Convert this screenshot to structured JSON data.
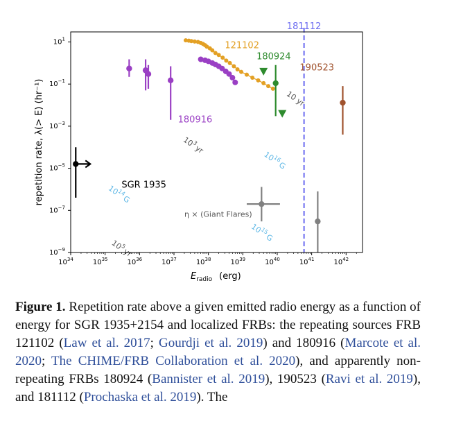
{
  "caption": {
    "label": "Figure 1.",
    "t1": " Repetition rate above a given emitted radio energy as a function of energy for SGR 1935+2154 and localized FRBs: the repeating sources FRB 121102 (",
    "c1": "Law et al. 2017",
    "t2": "; ",
    "c2": "Gourdji et al. 2019",
    "t3": ") and 180916 (",
    "c3": "Marcote et al. 2020",
    "t4": "; ",
    "c4": "The CHIME/FRB Collaboration et al. 2020",
    "t5": "), and apparently non-repeating FRBs 180924 (",
    "c5": "Bannister et al. 2019",
    "t6": "), 190523 (",
    "c6": "Ravi et al. 2019",
    "t7": "), and 181112 (",
    "c7": "Prochaska et al. 2019",
    "t8": "). The"
  },
  "chart_data": {
    "type": "scatter",
    "xscale": "log",
    "yscale": "log",
    "xlim": [
      1e+34,
      3e+42
    ],
    "ylim": [
      1e-09,
      30
    ],
    "xlabel_main": "E",
    "xlabel_sub": "radio",
    "xlabel_unit": "(erg)",
    "ylabel": "repetition rate, λ(> E)  (hr⁻¹)",
    "xticks": [
      {
        "base": "10",
        "exp": "34",
        "value": 1e+34
      },
      {
        "base": "10",
        "exp": "35",
        "value": 1e+35
      },
      {
        "base": "10",
        "exp": "36",
        "value": 1e+36
      },
      {
        "base": "10",
        "exp": "37",
        "value": 1e+37
      },
      {
        "base": "10",
        "exp": "38",
        "value": 1e+38
      },
      {
        "base": "10",
        "exp": "39",
        "value": 1e+39
      },
      {
        "base": "10",
        "exp": "40",
        "value": 1e+40
      },
      {
        "base": "10",
        "exp": "41",
        "value": 1e+41
      },
      {
        "base": "10",
        "exp": "42",
        "value": 1e+42
      }
    ],
    "yticks": [
      {
        "base": "10",
        "exp": "1",
        "value": 10
      },
      {
        "base": "10",
        "exp": "−1",
        "value": 0.1
      },
      {
        "base": "10",
        "exp": "−3",
        "value": 0.001
      },
      {
        "base": "10",
        "exp": "−5",
        "value": 1e-05
      },
      {
        "base": "10",
        "exp": "−7",
        "value": 1e-07
      },
      {
        "base": "10",
        "exp": "−9",
        "value": 1e-09
      }
    ],
    "bands": [
      {
        "name": "10 yr",
        "intercept_logy": 44.2
      },
      {
        "name": "10^3 yr",
        "intercept_logy": 40.2
      },
      {
        "name": "10^5 yr",
        "intercept_logy": 36.2
      }
    ],
    "band_half_width_logy": 0.9,
    "band_slope": -1.333,
    "band_color": "#ececec",
    "dotted_lines": [
      {
        "label": "10^16 G",
        "intercept_logy": 43.2
      },
      {
        "label": "10^15 G",
        "intercept_logy": 41.2
      },
      {
        "label": "10^14 G",
        "intercept_logy": 39.2
      }
    ],
    "dotted_color": "#5fb8e6",
    "text_labels": [
      {
        "text": "10",
        "sup": "3",
        "tail": "yr",
        "color": "#555555",
        "x": 1.8e+37,
        "y": 0.0002,
        "rotate": 35
      },
      {
        "text": "10",
        "sup": "5",
        "tail": "yr",
        "color": "#555555",
        "x": 1.5e+35,
        "y": 2.5e-09,
        "rotate": 35
      },
      {
        "text": "10 yr",
        "sup": "",
        "tail": "",
        "color": "#555555",
        "x": 1.8e+40,
        "y": 0.03,
        "rotate": 35
      },
      {
        "text": "10",
        "sup": "16",
        "tail": "G",
        "color": "#5fb8e6",
        "x": 4e+39,
        "y": 4e-05,
        "rotate": 35
      },
      {
        "text": "10",
        "sup": "15",
        "tail": "G",
        "color": "#5fb8e6",
        "x": 1.7e+39,
        "y": 1.5e-08,
        "rotate": 35
      },
      {
        "text": "10",
        "sup": "14",
        "tail": "G",
        "color": "#5fb8e6",
        "x": 1.2e+35,
        "y": 1e-06,
        "rotate": 35
      },
      {
        "text": "η × (Giant Flares)",
        "sup": "",
        "tail": "",
        "color": "#555555",
        "x": 2e+37,
        "y": 5e-08,
        "rotate": 0
      }
    ],
    "series": [
      {
        "name": "121102",
        "color": "#e3a024",
        "marker": "circle",
        "x": [
          2.2e+37,
          2.7e+37,
          3.2e+37,
          4e+37,
          5e+37,
          6e+37,
          7e+37,
          8e+37,
          9e+37,
          1.1e+38,
          1.3e+38,
          1.6e+38,
          2e+38,
          2.6e+38,
          3.3e+38,
          4.2e+38,
          5.5e+38,
          7e+38,
          9e+38,
          1.3e+39,
          1.9e+39,
          2.8e+39,
          4e+39,
          5.5e+39,
          7.5e+39
        ],
        "y": [
          12,
          11.5,
          11,
          10.5,
          10,
          9,
          8,
          7,
          6,
          5,
          4,
          3,
          2.4,
          1.8,
          1.3,
          1.0,
          0.7,
          0.5,
          0.38,
          0.28,
          0.2,
          0.15,
          0.11,
          0.08,
          0.06
        ]
      },
      {
        "name": "180916",
        "color": "#9a3fc4",
        "marker": "circle",
        "x": [
          6e+37,
          8e+37,
          1e+38,
          1.3e+38,
          1.6e+38,
          2e+38,
          2.5e+38,
          3.2e+38,
          4e+38,
          5e+38,
          6e+38
        ],
        "y": [
          1.5,
          1.35,
          1.2,
          1.0,
          0.85,
          0.7,
          0.55,
          0.4,
          0.3,
          0.2,
          0.12
        ]
      }
    ],
    "errorbar_points": [
      {
        "color": "#9a3fc4",
        "x": 5e+35,
        "y": 0.55,
        "ylo": 0.22,
        "yhi": 1.5,
        "marker": "circle"
      },
      {
        "color": "#9a3fc4",
        "x": 1.5e+36,
        "y": 0.45,
        "ylo": 0.05,
        "yhi": 1.5,
        "marker": "circle"
      },
      {
        "color": "#9a3fc4",
        "x": 1.8e+36,
        "y": 0.3,
        "ylo": 0.06,
        "yhi": 0.8,
        "marker": "circle"
      },
      {
        "color": "#9a3fc4",
        "x": 8e+36,
        "y": 0.15,
        "ylo": 0.002,
        "yhi": 0.7,
        "marker": "circle"
      },
      {
        "color": "#2e8b2e",
        "x": 4e+39,
        "y": 0.4,
        "ylo": null,
        "yhi": null,
        "marker": "triangle-down"
      },
      {
        "color": "#2e8b2e",
        "x": 9e+39,
        "y": 0.11,
        "ylo": 0.003,
        "yhi": 0.8,
        "marker": "circle"
      },
      {
        "color": "#2e8b2e",
        "x": 1.4e+40,
        "y": 0.004,
        "ylo": null,
        "yhi": null,
        "marker": "triangle-down"
      },
      {
        "color": "#a0522d",
        "x": 8e+41,
        "y": 0.013,
        "ylo": 0.0004,
        "yhi": 0.08,
        "marker": "circle"
      },
      {
        "color": "#000000",
        "x": 1.4e+34,
        "y": 1.6e-05,
        "ylo": 4e-07,
        "yhi": 0.0001,
        "marker": "circle",
        "arrow_right": true
      },
      {
        "color": "#808080",
        "x": 3.5e+39,
        "y": 2e-07,
        "ylo": 3e-08,
        "yhi": 1.3e-06,
        "xlo": 1.3e+39,
        "xhi": 1.2e+40,
        "marker": "circle"
      },
      {
        "color": "#808080",
        "x": 1.5e+41,
        "y": 3e-08,
        "ylo": 1e-09,
        "yhi": 8e-07,
        "marker": "circle"
      }
    ],
    "vline": {
      "label": "181112",
      "x": 6e+40,
      "color": "#6b6bf0"
    },
    "series_labels": [
      {
        "text": "121102",
        "color": "#e3a024",
        "x": 3e+38,
        "y": 5
      },
      {
        "text": "180924",
        "color": "#2e8b2e",
        "x": 2.5e+39,
        "y": 1.5
      },
      {
        "text": "190523",
        "color": "#a0522d",
        "x": 4.5e+40,
        "y": 0.45
      },
      {
        "text": "180916",
        "color": "#9a3fc4",
        "x": 1.3e+37,
        "y": 0.0015
      },
      {
        "text": "SGR 1935",
        "color": "#000000",
        "x": 3e+35,
        "y": 1.2e-06
      }
    ]
  }
}
